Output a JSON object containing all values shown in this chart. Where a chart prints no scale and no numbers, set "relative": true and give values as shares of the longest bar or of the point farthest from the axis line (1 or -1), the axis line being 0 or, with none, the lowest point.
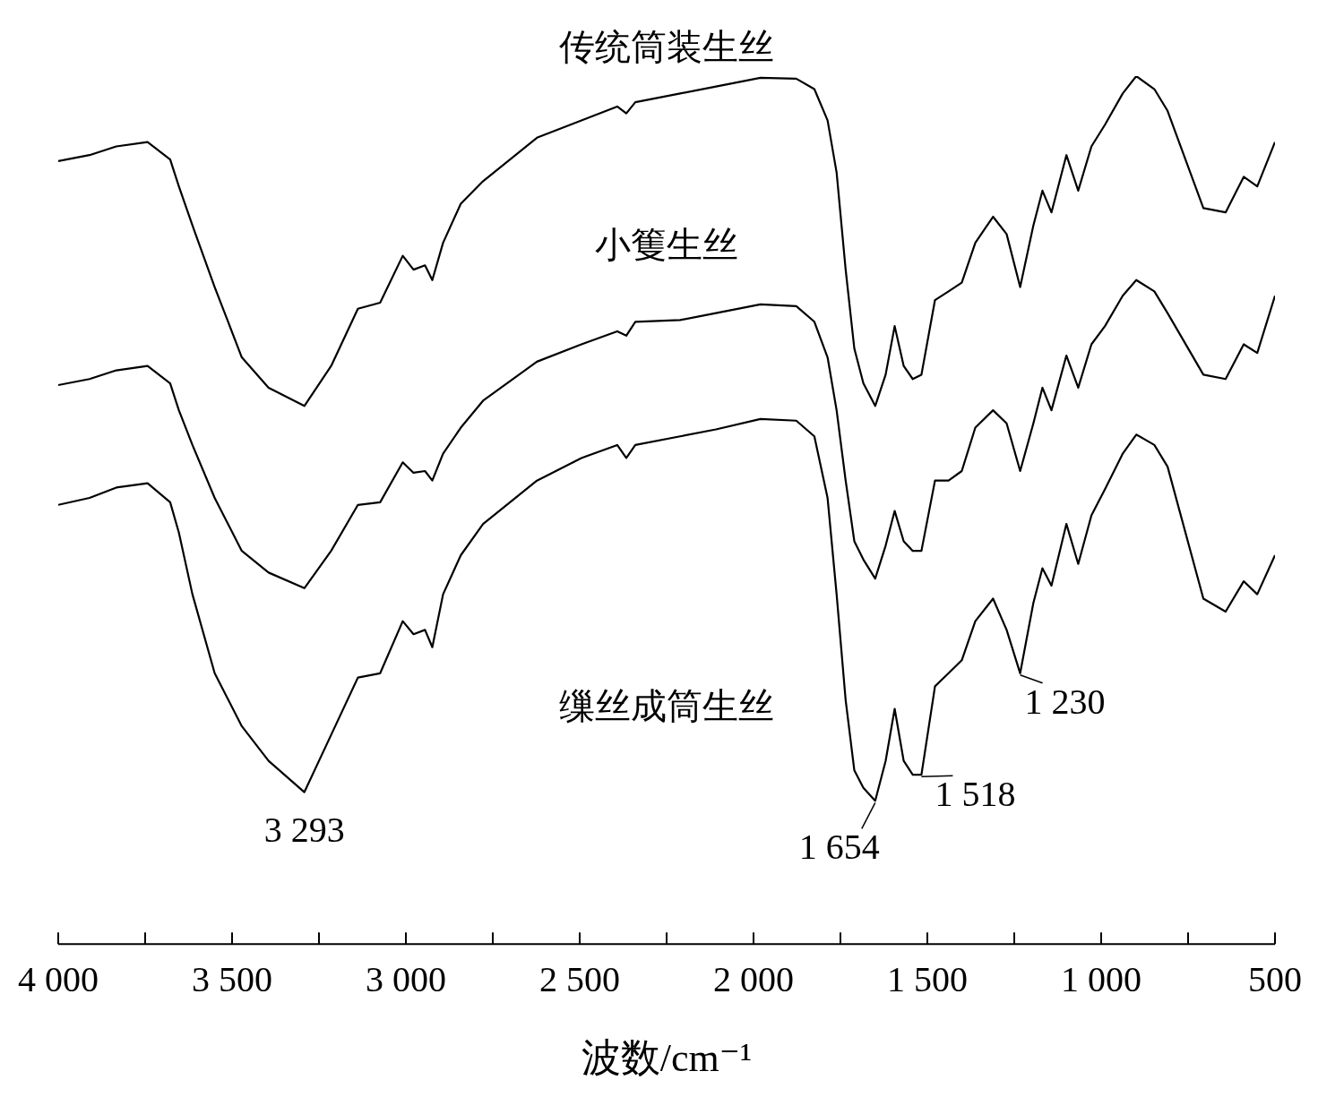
{
  "chart_data": {
    "type": "line",
    "relative": true,
    "marker": "none",
    "xlabel": "波数/cm⁻¹",
    "xlim": [
      4000,
      500
    ],
    "xticks": [
      {
        "value": 4000,
        "label": "4 000"
      },
      {
        "value": 3750,
        "label": null
      },
      {
        "value": 3500,
        "label": "3 500"
      },
      {
        "value": 3250,
        "label": null
      },
      {
        "value": 3000,
        "label": "3 000"
      },
      {
        "value": 2750,
        "label": null
      },
      {
        "value": 2500,
        "label": "2 500"
      },
      {
        "value": 2250,
        "label": null
      },
      {
        "value": 2000,
        "label": "2 000"
      },
      {
        "value": 1750,
        "label": null
      },
      {
        "value": 1500,
        "label": "1 500"
      },
      {
        "value": 1250,
        "label": null
      },
      {
        "value": 1000,
        "label": "1 000"
      },
      {
        "value": 750,
        "label": null
      },
      500
    ],
    "x": [
      4000,
      3910,
      3833,
      3743,
      3678,
      3653,
      3614,
      3550,
      3472,
      3395,
      3292,
      3215,
      3138,
      3074,
      3009,
      2978,
      2945,
      2924,
      2893,
      2842,
      2778,
      2623,
      2495,
      2392,
      2366,
      2340,
      2211,
      2108,
      1980,
      1877,
      1825,
      1787,
      1761,
      1735,
      1710,
      1684,
      1650,
      1620,
      1594,
      1568,
      1542,
      1517,
      1478,
      1439,
      1401,
      1362,
      1311,
      1272,
      1233,
      1195,
      1169,
      1143,
      1100,
      1066,
      1028,
      989,
      938,
      899,
      847,
      809,
      706,
      642,
      590,
      551,
      500
    ],
    "series": [
      {
        "name": "传统筒装生丝",
        "color": "#000000",
        "values": [
          0.902,
          0.909,
          0.919,
          0.924,
          0.904,
          0.873,
          0.828,
          0.757,
          0.676,
          0.641,
          0.62,
          0.666,
          0.732,
          0.739,
          0.793,
          0.777,
          0.782,
          0.765,
          0.808,
          0.853,
          0.879,
          0.929,
          0.949,
          0.965,
          0.957,
          0.97,
          0.98,
          0.988,
          0.998,
          0.997,
          0.985,
          0.949,
          0.889,
          0.777,
          0.686,
          0.646,
          0.62,
          0.656,
          0.712,
          0.666,
          0.651,
          0.656,
          0.742,
          0.752,
          0.762,
          0.808,
          0.838,
          0.818,
          0.757,
          0.828,
          0.868,
          0.843,
          0.909,
          0.868,
          0.919,
          0.944,
          0.98,
          1,
          0.985,
          0.96,
          0.848,
          0.843,
          0.884,
          0.873,
          0.924
        ]
      },
      {
        "name": "小篗生丝",
        "color": "#000000",
        "values": [
          0.644,
          0.651,
          0.661,
          0.666,
          0.646,
          0.615,
          0.575,
          0.514,
          0.453,
          0.428,
          0.41,
          0.453,
          0.506,
          0.509,
          0.555,
          0.543,
          0.545,
          0.534,
          0.565,
          0.595,
          0.626,
          0.671,
          0.691,
          0.706,
          0.701,
          0.717,
          0.719,
          0.727,
          0.737,
          0.735,
          0.717,
          0.676,
          0.615,
          0.534,
          0.464,
          0.443,
          0.421,
          0.459,
          0.499,
          0.464,
          0.453,
          0.453,
          0.534,
          0.534,
          0.545,
          0.595,
          0.615,
          0.6,
          0.545,
          0.6,
          0.641,
          0.615,
          0.678,
          0.641,
          0.691,
          0.712,
          0.747,
          0.765,
          0.752,
          0.727,
          0.656,
          0.651,
          0.691,
          0.681,
          0.747
        ]
      },
      {
        "name": "缫丝成筒生丝",
        "color": "#000000",
        "values": [
          0.506,
          0.514,
          0.526,
          0.531,
          0.509,
          0.474,
          0.403,
          0.312,
          0.251,
          0.211,
          0.175,
          0.241,
          0.307,
          0.312,
          0.372,
          0.357,
          0.362,
          0.342,
          0.403,
          0.448,
          0.484,
          0.534,
          0.56,
          0.575,
          0.56,
          0.575,
          0.585,
          0.593,
          0.605,
          0.603,
          0.585,
          0.514,
          0.403,
          0.281,
          0.2,
          0.18,
          0.165,
          0.211,
          0.271,
          0.211,
          0.195,
          0.195,
          0.297,
          0.312,
          0.327,
          0.372,
          0.398,
          0.362,
          0.312,
          0.393,
          0.433,
          0.413,
          0.484,
          0.438,
          0.494,
          0.524,
          0.565,
          0.587,
          0.575,
          0.55,
          0.398,
          0.383,
          0.418,
          0.403,
          0.448
        ]
      }
    ],
    "annotations": [
      {
        "text": "3 293",
        "x": 3292,
        "y": 0.175
      },
      {
        "text": "1 654",
        "x": 1650,
        "y": 0.165
      },
      {
        "text": "1 518",
        "x": 1517,
        "y": 0.195
      },
      {
        "text": "1 230",
        "x": 1233,
        "y": 0.312
      }
    ]
  }
}
